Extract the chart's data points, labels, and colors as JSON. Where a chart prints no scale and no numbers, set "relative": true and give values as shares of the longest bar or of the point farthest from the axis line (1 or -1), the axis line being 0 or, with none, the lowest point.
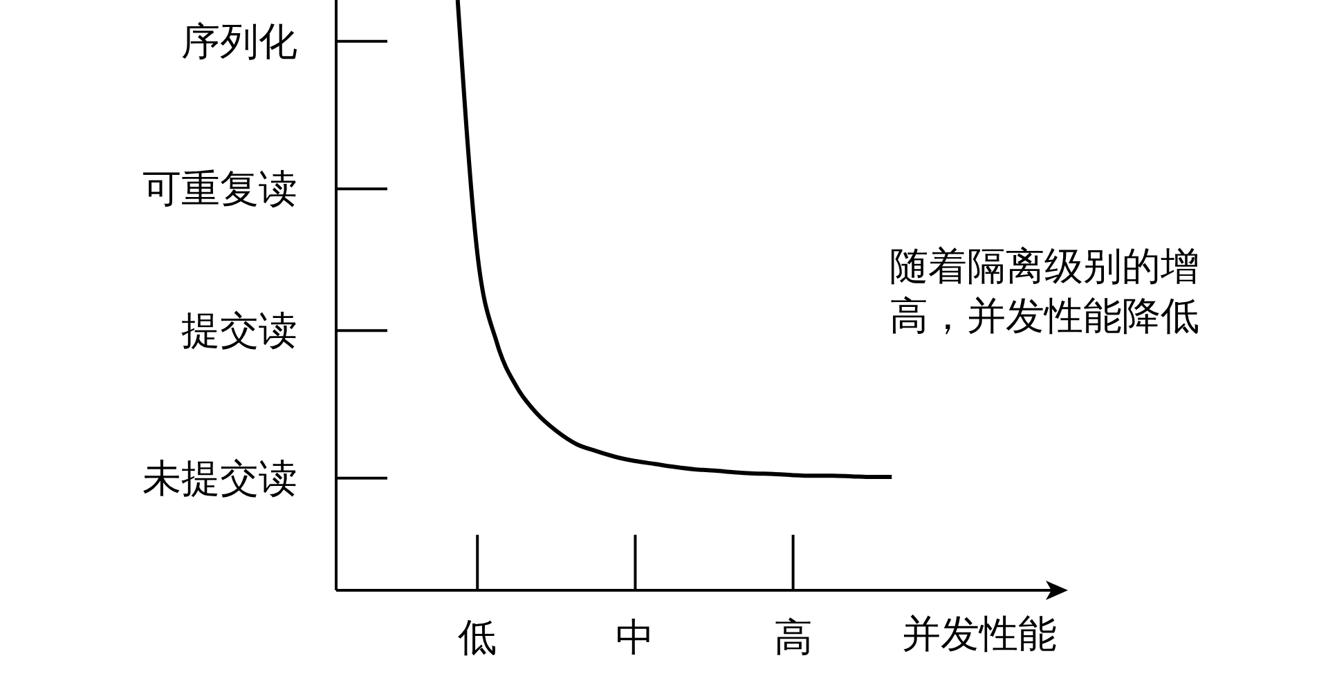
{
  "chart_data": {
    "type": "line",
    "xlabel": "并发性能",
    "relative": true,
    "annotations": [
      "随着隔离级别的增高，并发性能降低"
    ],
    "ref_lines": [
      {
        "axis": "y",
        "value": 0.19,
        "label": "未提交读"
      },
      {
        "axis": "y",
        "value": 0.44,
        "label": "提交读"
      },
      {
        "axis": "y",
        "value": 0.68,
        "label": "可重复读"
      },
      {
        "axis": "y",
        "value": 0.93,
        "label": "序列化"
      },
      {
        "axis": "x",
        "value": "低"
      },
      {
        "axis": "x",
        "value": "中"
      },
      {
        "axis": "x",
        "value": "高"
      }
    ],
    "categories": [
      null,
      "低",
      null,
      null,
      null,
      null,
      null,
      null,
      null,
      "中",
      null,
      null,
      null,
      null,
      null,
      null,
      null,
      "高",
      null,
      null,
      null,
      null,
      null
    ],
    "series": [
      {
        "color": "#000000",
        "values": [
          1.0,
          0.57,
          0.418,
          0.344,
          0.3,
          0.27,
          0.248,
          0.236,
          0.226,
          0.219,
          0.214,
          0.209,
          0.205,
          0.203,
          0.2,
          0.198,
          0.197,
          0.195,
          0.194,
          0.194,
          0.193,
          0.192,
          0.192
        ]
      }
    ],
    "grid": false,
    "legend": false,
    "marker": "none",
    "line_style": "solid"
  }
}
